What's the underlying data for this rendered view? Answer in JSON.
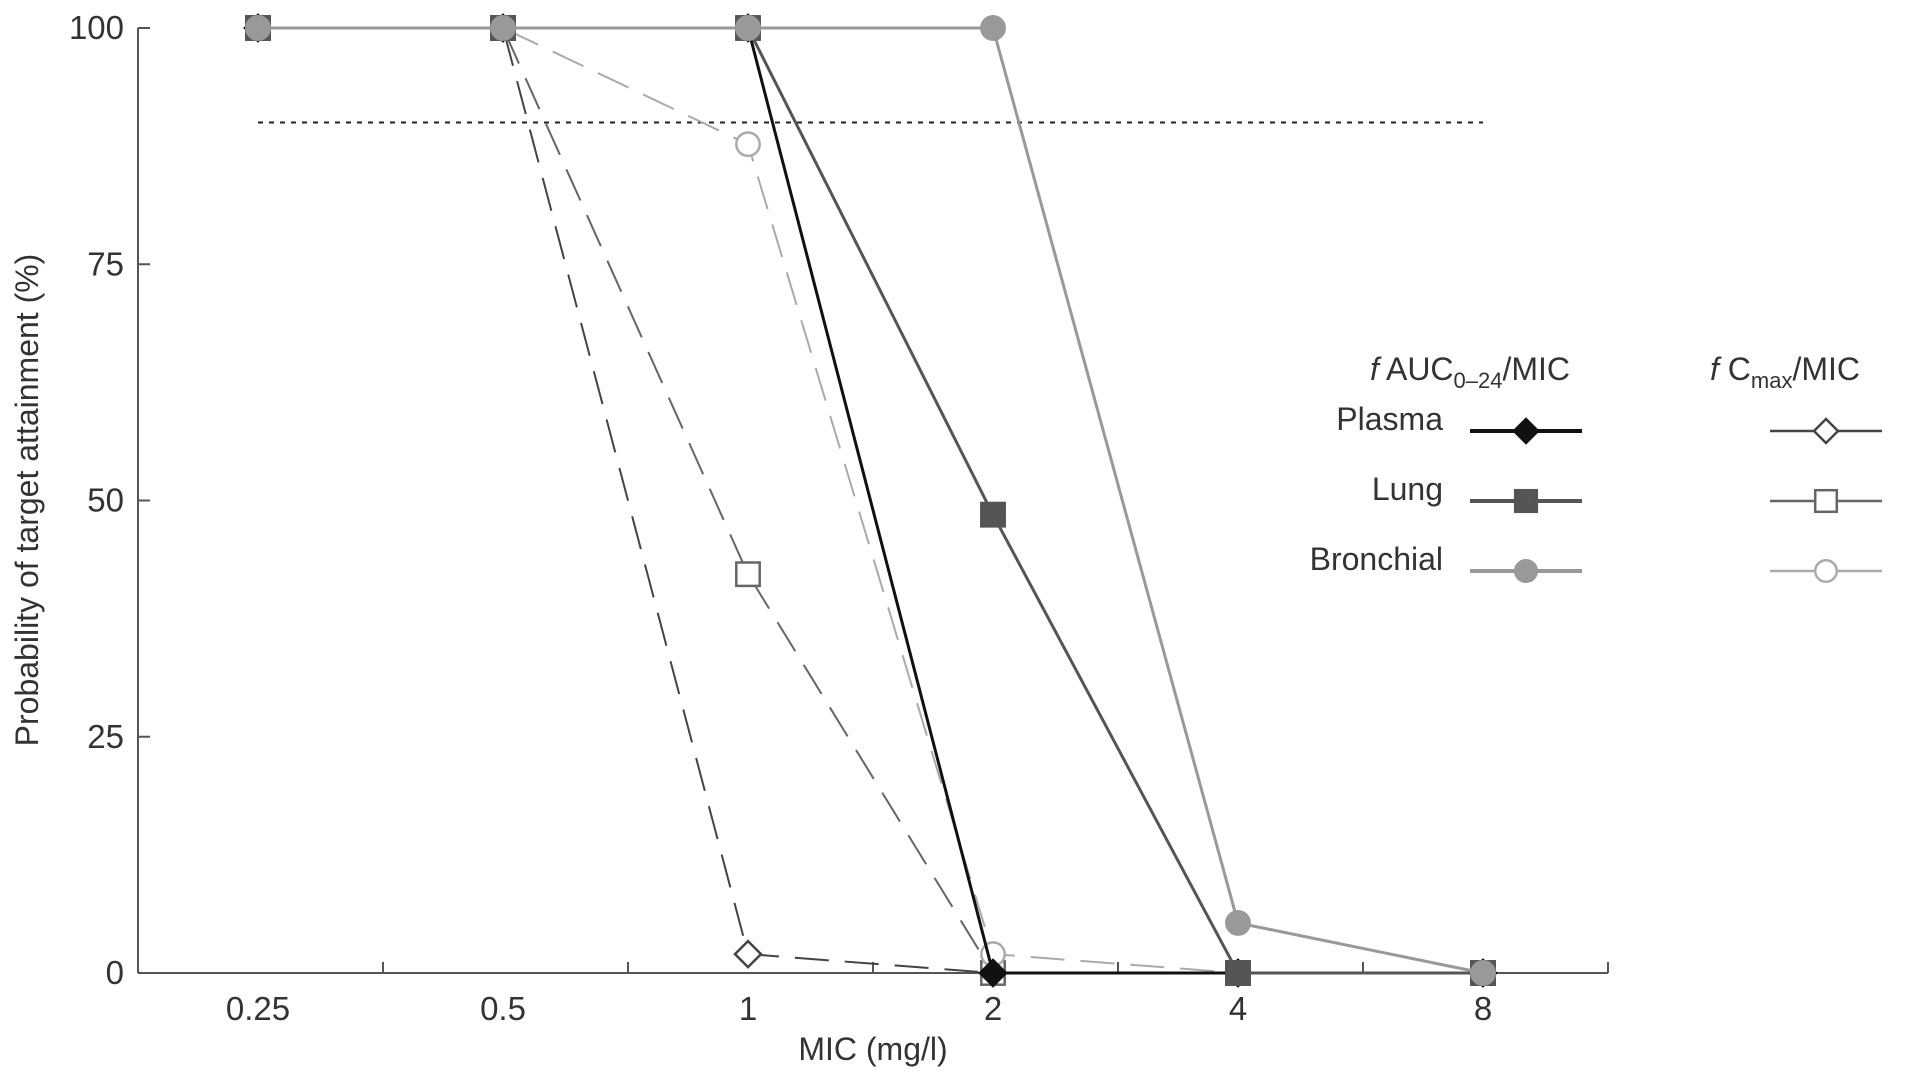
{
  "chart_data": {
    "type": "line",
    "title": "",
    "xlabel": "MIC (mg/l)",
    "ylabel": "Probability of target attainment (%)",
    "x_scale": "log2",
    "categories": [
      "0.25",
      "0.5",
      "1",
      "2",
      "4",
      "8"
    ],
    "x": [
      0.25,
      0.5,
      1,
      2,
      4,
      8
    ],
    "ylim": [
      0,
      100
    ],
    "yticks": [
      "0",
      "25",
      "50",
      "75",
      "100"
    ],
    "target_line": 90,
    "grid": false,
    "legend_position": "right",
    "legend": {
      "group_titles": [
        {
          "italic": "f",
          "main": " AUC",
          "sub": "0–24",
          "tail": "/MIC"
        },
        {
          "italic": "f",
          "main": " C",
          "sub": "max",
          "tail": "/MIC"
        }
      ],
      "rows": [
        "Plasma",
        "Lung",
        "Bronchial"
      ]
    },
    "series": [
      {
        "name": "Plasma",
        "group": "fAUC0-24/MIC",
        "values": [
          100,
          100,
          100,
          0,
          0,
          0
        ],
        "color": "#111111",
        "marker": "diamond",
        "filled": true,
        "dashed": false
      },
      {
        "name": "Lung",
        "group": "fAUC0-24/MIC",
        "values": [
          100,
          100,
          100,
          48.5,
          0,
          0
        ],
        "color": "#555555",
        "marker": "square",
        "filled": true,
        "dashed": false
      },
      {
        "name": "Bronchial",
        "group": "fAUC0-24/MIC",
        "values": [
          100,
          100,
          100,
          100,
          5.3,
          0
        ],
        "color": "#999999",
        "marker": "circle",
        "filled": true,
        "dashed": false
      },
      {
        "name": "Plasma",
        "group": "fCmax/MIC",
        "values": [
          100,
          100,
          2,
          0,
          0,
          0
        ],
        "color": "#444444",
        "marker": "diamond",
        "filled": false,
        "dashed": true
      },
      {
        "name": "Lung",
        "group": "fCmax/MIC",
        "values": [
          100,
          100,
          42.2,
          0,
          0,
          0
        ],
        "color": "#666666",
        "marker": "square",
        "filled": false,
        "dashed": true
      },
      {
        "name": "Bronchial",
        "group": "fCmax/MIC",
        "values": [
          100,
          100,
          87.7,
          2,
          0,
          0
        ],
        "color": "#aaaaaa",
        "marker": "circle",
        "filled": false,
        "dashed": true
      }
    ]
  }
}
